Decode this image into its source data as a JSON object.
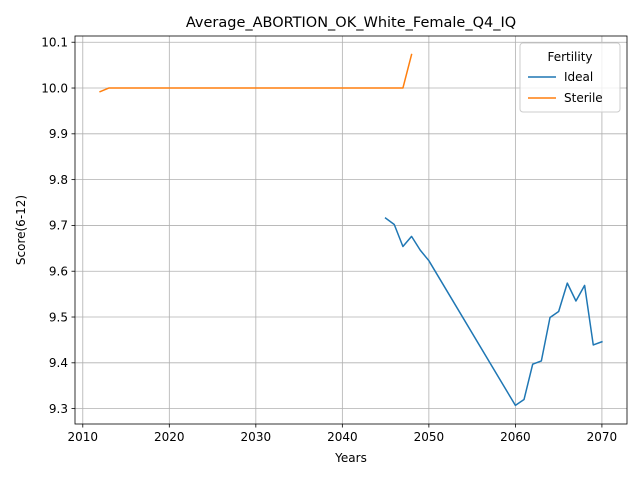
{
  "chart_data": {
    "type": "line",
    "title": "Average_ABORTION_OK_White_Female_Q4_IQ",
    "xlabel": "Years",
    "ylabel": "Score(6-12)",
    "xlim": [
      2009.1,
      2072.9
    ],
    "ylim": [
      9.2664,
      10.1136
    ],
    "xticks": [
      2010,
      2020,
      2030,
      2040,
      2050,
      2060,
      2070
    ],
    "yticks": [
      9.3,
      9.4,
      9.5,
      9.6,
      9.7,
      9.8,
      9.9,
      10.0,
      10.1
    ],
    "ytick_labels": [
      "9.3",
      "9.4",
      "9.5",
      "9.6",
      "9.7",
      "9.8",
      "9.9",
      "10.0",
      "10.1"
    ],
    "grid": true,
    "legend": {
      "title": "Fertility",
      "position": "upper right"
    },
    "series": [
      {
        "name": "Ideal",
        "color": "#1f77b4",
        "x": [
          2045,
          2046,
          2047,
          2048,
          2049,
          2050,
          2060,
          2061,
          2062,
          2063,
          2064,
          2065,
          2066,
          2067,
          2068,
          2069,
          2070
        ],
        "y": [
          9.716,
          9.702,
          9.654,
          9.676,
          9.646,
          9.623,
          9.307,
          9.32,
          9.397,
          9.404,
          9.499,
          9.512,
          9.574,
          9.535,
          9.569,
          9.439,
          9.446
        ]
      },
      {
        "name": "Sterile",
        "color": "#ff7f0e",
        "x": [
          2012,
          2013,
          2014,
          2020,
          2030,
          2040,
          2047,
          2048
        ],
        "y": [
          9.992,
          10.0,
          10.0,
          10.0,
          10.0,
          10.0,
          10.0,
          10.073
        ]
      }
    ]
  }
}
